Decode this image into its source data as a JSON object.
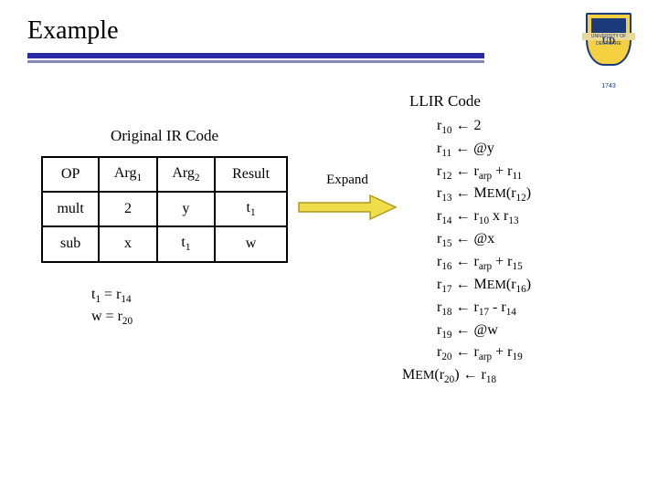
{
  "title": "Example",
  "logo": {
    "initials": "UD",
    "banner": "UNIVERSITY OF DELAWARE",
    "year": "1743"
  },
  "ir": {
    "title": "Original IR Code",
    "columns": [
      "OP",
      "Arg1",
      "Arg2",
      "Result"
    ],
    "rows": [
      [
        "mult",
        "2",
        "y",
        "t1"
      ],
      [
        "sub",
        "x",
        "t1",
        "w"
      ]
    ]
  },
  "assignments": {
    "line1_lhs": "t1",
    "line1_eq": " = r",
    "line1_r": "14",
    "line2_lhs": "w = r",
    "line2_r": "20"
  },
  "expand": {
    "label": "Expand",
    "arrow_body_color": "#f0dd4a",
    "arrow_border_color": "#b09820"
  },
  "llir": {
    "title": "LLIR Code",
    "lines": [
      {
        "lhs_r": "10",
        "rhs_text": "2"
      },
      {
        "lhs_r": "11",
        "rhs_text": "@y"
      },
      {
        "lhs_r": "12",
        "rhs_html": "r<sub>arp</sub> + r<sub>11</sub>"
      },
      {
        "lhs_r": "13",
        "rhs_html": "M<span class=\"smallcaps\">EM</span>(r<sub>12</sub>)"
      },
      {
        "lhs_r": "14",
        "rhs_html": "r<sub>10</sub> x r<sub>13</sub>"
      },
      {
        "lhs_r": "15",
        "rhs_text": "@x"
      },
      {
        "lhs_r": "16",
        "rhs_html": "r<sub>arp</sub> + r<sub>15</sub>"
      },
      {
        "lhs_r": "17",
        "rhs_html": "M<span class=\"smallcaps\">EM</span>(r<sub>16</sub>)"
      },
      {
        "lhs_r": "18",
        "rhs_html": "r<sub>17</sub> - r<sub>14</sub>"
      },
      {
        "lhs_r": "19",
        "rhs_text": "@w"
      },
      {
        "lhs_r": "20",
        "rhs_html": "r<sub>arp</sub> + r<sub>19</sub>"
      },
      {
        "mem_lhs_r": "20",
        "rhs_html": "r<sub>18</sub>"
      }
    ]
  },
  "colors": {
    "underline": "#2a2aa8",
    "shadow": "#8888b8"
  }
}
